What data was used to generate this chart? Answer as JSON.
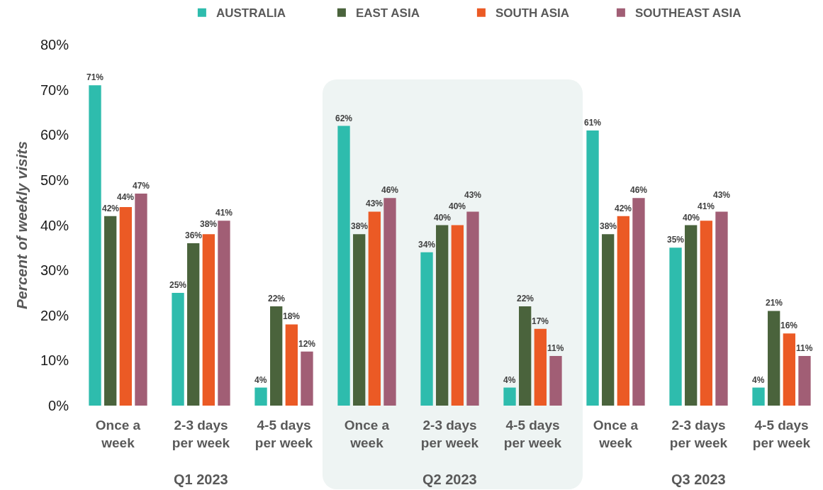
{
  "chart_data": {
    "type": "bar",
    "ylabel": "Percent of weekly visits",
    "categories": [
      "Once a week",
      "2-3 days per week",
      "4-5 days per week",
      "Once a week",
      "2-3 days per week",
      "4-5 days per week",
      "Once a week",
      "2-3 days per week",
      "4-5 days per week"
    ],
    "series": [
      {
        "name": "AUSTRALIA",
        "color": "#2ebcad",
        "values": [
          71,
          25,
          4,
          62,
          34,
          4,
          61,
          35,
          4
        ],
        "value_labels": [
          "71%",
          "25%",
          "4%",
          "62%",
          "34%",
          "4%",
          "61%",
          "35%",
          "4%"
        ]
      },
      {
        "name": "EAST ASIA",
        "color": "#4a633c",
        "values": [
          42,
          36,
          22,
          38,
          40,
          22,
          38,
          40,
          21
        ],
        "value_labels": [
          "42%",
          "36%",
          "22%",
          "38%",
          "40%",
          "22%",
          "38%",
          "40%",
          "21%"
        ]
      },
      {
        "name": "SOUTH ASIA",
        "color": "#eb5a25",
        "values": [
          44,
          38,
          18,
          43,
          40,
          17,
          42,
          41,
          16
        ],
        "value_labels": [
          "44%",
          "38%",
          "18%",
          "43%",
          "40%",
          "17%",
          "42%",
          "41%",
          "16%"
        ]
      },
      {
        "name": "SOUTHEAST ASIA",
        "color": "#a15e75",
        "values": [
          47,
          41,
          12,
          46,
          43,
          11,
          46,
          43,
          11
        ],
        "value_labels": [
          "47%",
          "41%",
          "12%",
          "46%",
          "43%",
          "11%",
          "46%",
          "43%",
          "11%"
        ]
      }
    ],
    "ylim": [
      0,
      80
    ],
    "yticks": [
      {
        "value": 0,
        "label": "0%"
      },
      {
        "value": 10,
        "label": "10%"
      },
      {
        "value": 20,
        "label": "20%"
      },
      {
        "value": 30,
        "label": "30%"
      },
      {
        "value": 40,
        "label": "40%"
      },
      {
        "value": 50,
        "label": "50%"
      },
      {
        "value": 60,
        "label": "60%"
      },
      {
        "value": 70,
        "label": "70%"
      },
      {
        "value": 80,
        "label": "80%"
      }
    ],
    "legend": "top",
    "annotations": [
      "Q1 2023",
      "Q2 2023",
      "Q3 2023"
    ]
  }
}
